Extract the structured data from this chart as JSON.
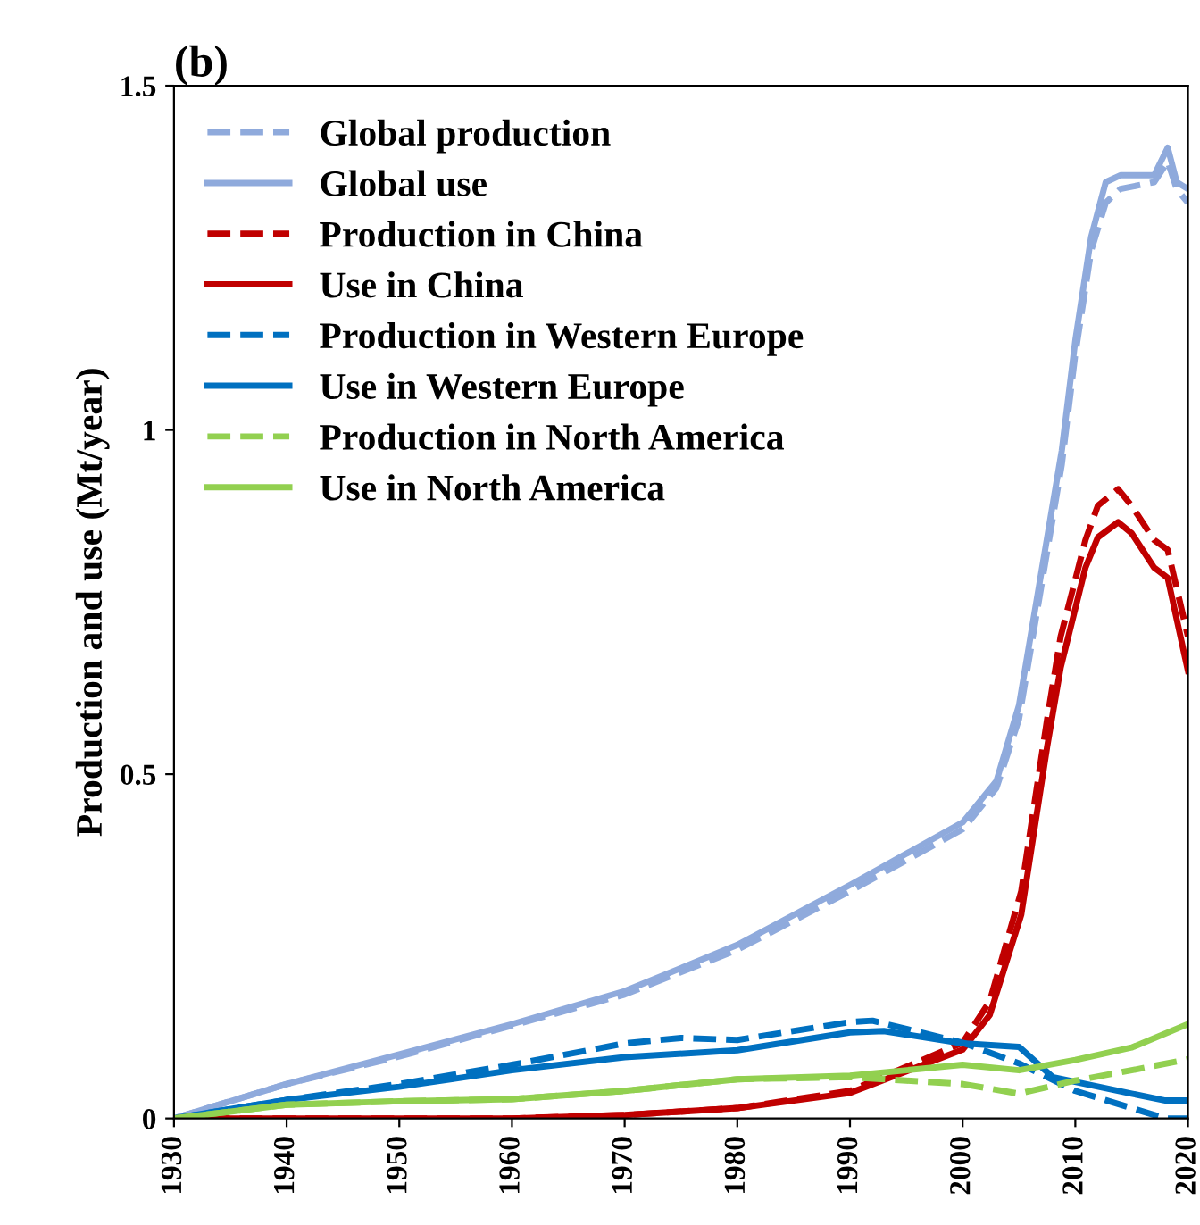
{
  "chart_data": {
    "type": "line",
    "title": "(b)",
    "ylabel": "Production and use (Mt/year)",
    "xlim": [
      1930,
      2020
    ],
    "xticks": [
      1930,
      1940,
      1950,
      1960,
      1970,
      1980,
      1990,
      2000,
      2010,
      2020
    ],
    "ylim": [
      0,
      1.5
    ],
    "yticks": [
      0,
      0.5,
      1,
      1.5
    ],
    "grid": false,
    "legend": "top left",
    "series": [
      {
        "name": "Global production",
        "color": "#8faadc",
        "line_style": "dashed",
        "x": [
          1930,
          1940,
          1950,
          1960,
          1970,
          1980,
          1990,
          2000,
          2003,
          2005,
          2008.8,
          2010,
          2011.4,
          2012.7,
          2014,
          2017,
          2018.2,
          2019,
          2020
        ],
        "values": [
          0,
          0.05,
          0.09,
          0.135,
          0.18,
          0.245,
          0.33,
          0.42,
          0.48,
          0.58,
          0.95,
          1.11,
          1.26,
          1.33,
          1.35,
          1.36,
          1.39,
          1.35,
          1.33
        ]
      },
      {
        "name": "Global use",
        "color": "#8faadc",
        "line_style": "solid",
        "x": [
          1930,
          1940,
          1950,
          1960,
          1970,
          1980,
          1990,
          2000,
          2003,
          2005,
          2008.8,
          2010,
          2011.4,
          2012.7,
          2014,
          2017,
          2018.2,
          2019,
          2020
        ],
        "values": [
          0,
          0.05,
          0.093,
          0.137,
          0.185,
          0.252,
          0.339,
          0.43,
          0.49,
          0.6,
          0.97,
          1.13,
          1.28,
          1.36,
          1.37,
          1.37,
          1.41,
          1.36,
          1.35
        ]
      },
      {
        "name": "Production in China",
        "color": "#c00000",
        "line_style": "dashed",
        "x": [
          1930,
          1960,
          1970,
          1980,
          1990,
          2000,
          2002.4,
          2005.2,
          2007.5,
          2008.7,
          2010.9,
          2012,
          2013.8,
          2015,
          2017,
          2018.2,
          2020
        ],
        "values": [
          0,
          0,
          0.005,
          0.015,
          0.04,
          0.11,
          0.17,
          0.33,
          0.58,
          0.7,
          0.84,
          0.89,
          0.914,
          0.89,
          0.84,
          0.826,
          0.7
        ]
      },
      {
        "name": "Use in China",
        "color": "#c00000",
        "line_style": "solid",
        "x": [
          1930,
          1960,
          1970,
          1980,
          1990,
          2000,
          2002.4,
          2005.2,
          2007.5,
          2008.7,
          2010.9,
          2012,
          2013.8,
          2015,
          2017,
          2018.2,
          2020
        ],
        "values": [
          0,
          0,
          0.005,
          0.015,
          0.037,
          0.1,
          0.15,
          0.296,
          0.54,
          0.655,
          0.8,
          0.844,
          0.866,
          0.85,
          0.8,
          0.785,
          0.65
        ]
      },
      {
        "name": "Production in Western Europe",
        "color": "#0070c0",
        "line_style": "dashed",
        "x": [
          1930,
          1940,
          1950,
          1960,
          1970,
          1975,
          1980,
          1990,
          1992,
          2000,
          2005,
          2010,
          2015,
          2018,
          2020
        ],
        "values": [
          0,
          0.027,
          0.05,
          0.078,
          0.109,
          0.117,
          0.114,
          0.14,
          0.142,
          0.11,
          0.08,
          0.04,
          0.015,
          0.0,
          0.0
        ]
      },
      {
        "name": "Use in Western Europe",
        "color": "#0070c0",
        "line_style": "solid",
        "x": [
          1930,
          1940,
          1950,
          1960,
          1970,
          1980,
          1990,
          1993,
          2000,
          2005,
          2008,
          2015,
          2018,
          2020
        ],
        "values": [
          0,
          0.027,
          0.046,
          0.07,
          0.089,
          0.099,
          0.125,
          0.127,
          0.109,
          0.104,
          0.06,
          0.036,
          0.026,
          0.026
        ]
      },
      {
        "name": "Production in North America",
        "color": "#92d050",
        "line_style": "dashed",
        "x": [
          1930,
          1940,
          1950,
          1960,
          1970,
          1980,
          1990,
          1995,
          2000,
          2005,
          2010,
          2015,
          2020
        ],
        "values": [
          0,
          0.02,
          0.025,
          0.028,
          0.04,
          0.057,
          0.06,
          0.055,
          0.05,
          0.036,
          0.055,
          0.07,
          0.086
        ]
      },
      {
        "name": "Use in North America",
        "color": "#92d050",
        "line_style": "solid",
        "x": [
          1930,
          1940,
          1950,
          1960,
          1970,
          1980,
          1990,
          2000,
          2005,
          2010,
          2015,
          2020
        ],
        "values": [
          0,
          0.02,
          0.025,
          0.028,
          0.04,
          0.057,
          0.062,
          0.078,
          0.07,
          0.085,
          0.103,
          0.137
        ]
      }
    ]
  }
}
